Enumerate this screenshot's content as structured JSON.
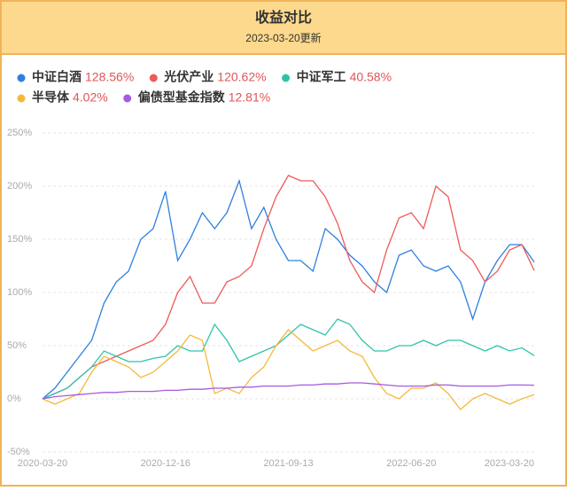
{
  "chart_data": {
    "type": "line",
    "title": "收益对比",
    "subtitle": "2023-03-20更新",
    "categories": [
      "2020-03-20",
      null,
      null,
      null,
      null,
      null,
      null,
      null,
      null,
      null,
      "2020-12-16",
      null,
      null,
      null,
      null,
      null,
      null,
      null,
      null,
      null,
      "2021-09-13",
      null,
      null,
      null,
      null,
      null,
      null,
      null,
      null,
      null,
      "2022-06-20",
      null,
      null,
      null,
      null,
      null,
      null,
      null,
      null,
      null,
      "2023-03-20"
    ],
    "ylim": [
      -50,
      250
    ],
    "yticks": [
      {
        "value": -50,
        "label": "-50%"
      },
      {
        "value": 0,
        "label": "0%"
      },
      {
        "value": 50,
        "label": "50%"
      },
      {
        "value": 100,
        "label": "100%"
      },
      {
        "value": 150,
        "label": "150%"
      },
      {
        "value": 200,
        "label": "200%"
      },
      {
        "value": 250,
        "label": "250%"
      }
    ],
    "grid": true,
    "series": [
      {
        "name": "中证白酒",
        "value_label": "128.56%",
        "color": "#2f7fe0",
        "values": [
          0,
          10,
          25,
          40,
          55,
          90,
          110,
          120,
          150,
          160,
          195,
          130,
          150,
          175,
          160,
          175,
          205,
          160,
          180,
          150,
          130,
          130,
          120,
          160,
          150,
          135,
          125,
          110,
          100,
          135,
          140,
          125,
          120,
          125,
          110,
          75,
          110,
          130,
          145,
          145,
          128.56
        ]
      },
      {
        "name": "光伏产业",
        "value_label": "120.62%",
        "color": "#ee5a5a",
        "values": [
          0,
          5,
          10,
          20,
          30,
          35,
          40,
          45,
          50,
          55,
          70,
          100,
          115,
          90,
          90,
          110,
          115,
          125,
          160,
          190,
          210,
          205,
          205,
          190,
          165,
          130,
          110,
          100,
          140,
          170,
          175,
          160,
          200,
          190,
          140,
          130,
          110,
          120,
          140,
          145,
          120.62
        ]
      },
      {
        "name": "中证军工",
        "value_label": "40.58%",
        "color": "#2fc4aa",
        "values": [
          0,
          5,
          10,
          20,
          30,
          45,
          40,
          35,
          35,
          38,
          40,
          50,
          45,
          45,
          70,
          55,
          35,
          40,
          45,
          50,
          60,
          70,
          65,
          60,
          75,
          70,
          55,
          45,
          45,
          50,
          50,
          55,
          50,
          55,
          55,
          50,
          45,
          50,
          45,
          48,
          40.58
        ]
      },
      {
        "name": "半导体",
        "value_label": "4.02%",
        "color": "#f5b93a",
        "values": [
          0,
          -5,
          0,
          5,
          25,
          40,
          35,
          30,
          20,
          25,
          35,
          45,
          60,
          55,
          5,
          10,
          5,
          20,
          30,
          50,
          65,
          55,
          45,
          50,
          55,
          45,
          40,
          20,
          5,
          0,
          10,
          10,
          15,
          5,
          -10,
          0,
          5,
          0,
          -5,
          0,
          4.02
        ]
      },
      {
        "name": "偏债型基金指数",
        "value_label": "12.81%",
        "color": "#a65be0",
        "values": [
          0,
          2,
          3,
          4,
          5,
          6,
          6,
          7,
          7,
          7,
          8,
          8,
          9,
          9,
          10,
          10,
          11,
          11,
          12,
          12,
          12,
          13,
          13,
          14,
          14,
          15,
          15,
          14,
          13,
          12,
          12,
          12,
          13,
          13,
          12,
          12,
          12,
          12,
          13,
          13,
          12.81
        ]
      }
    ]
  }
}
